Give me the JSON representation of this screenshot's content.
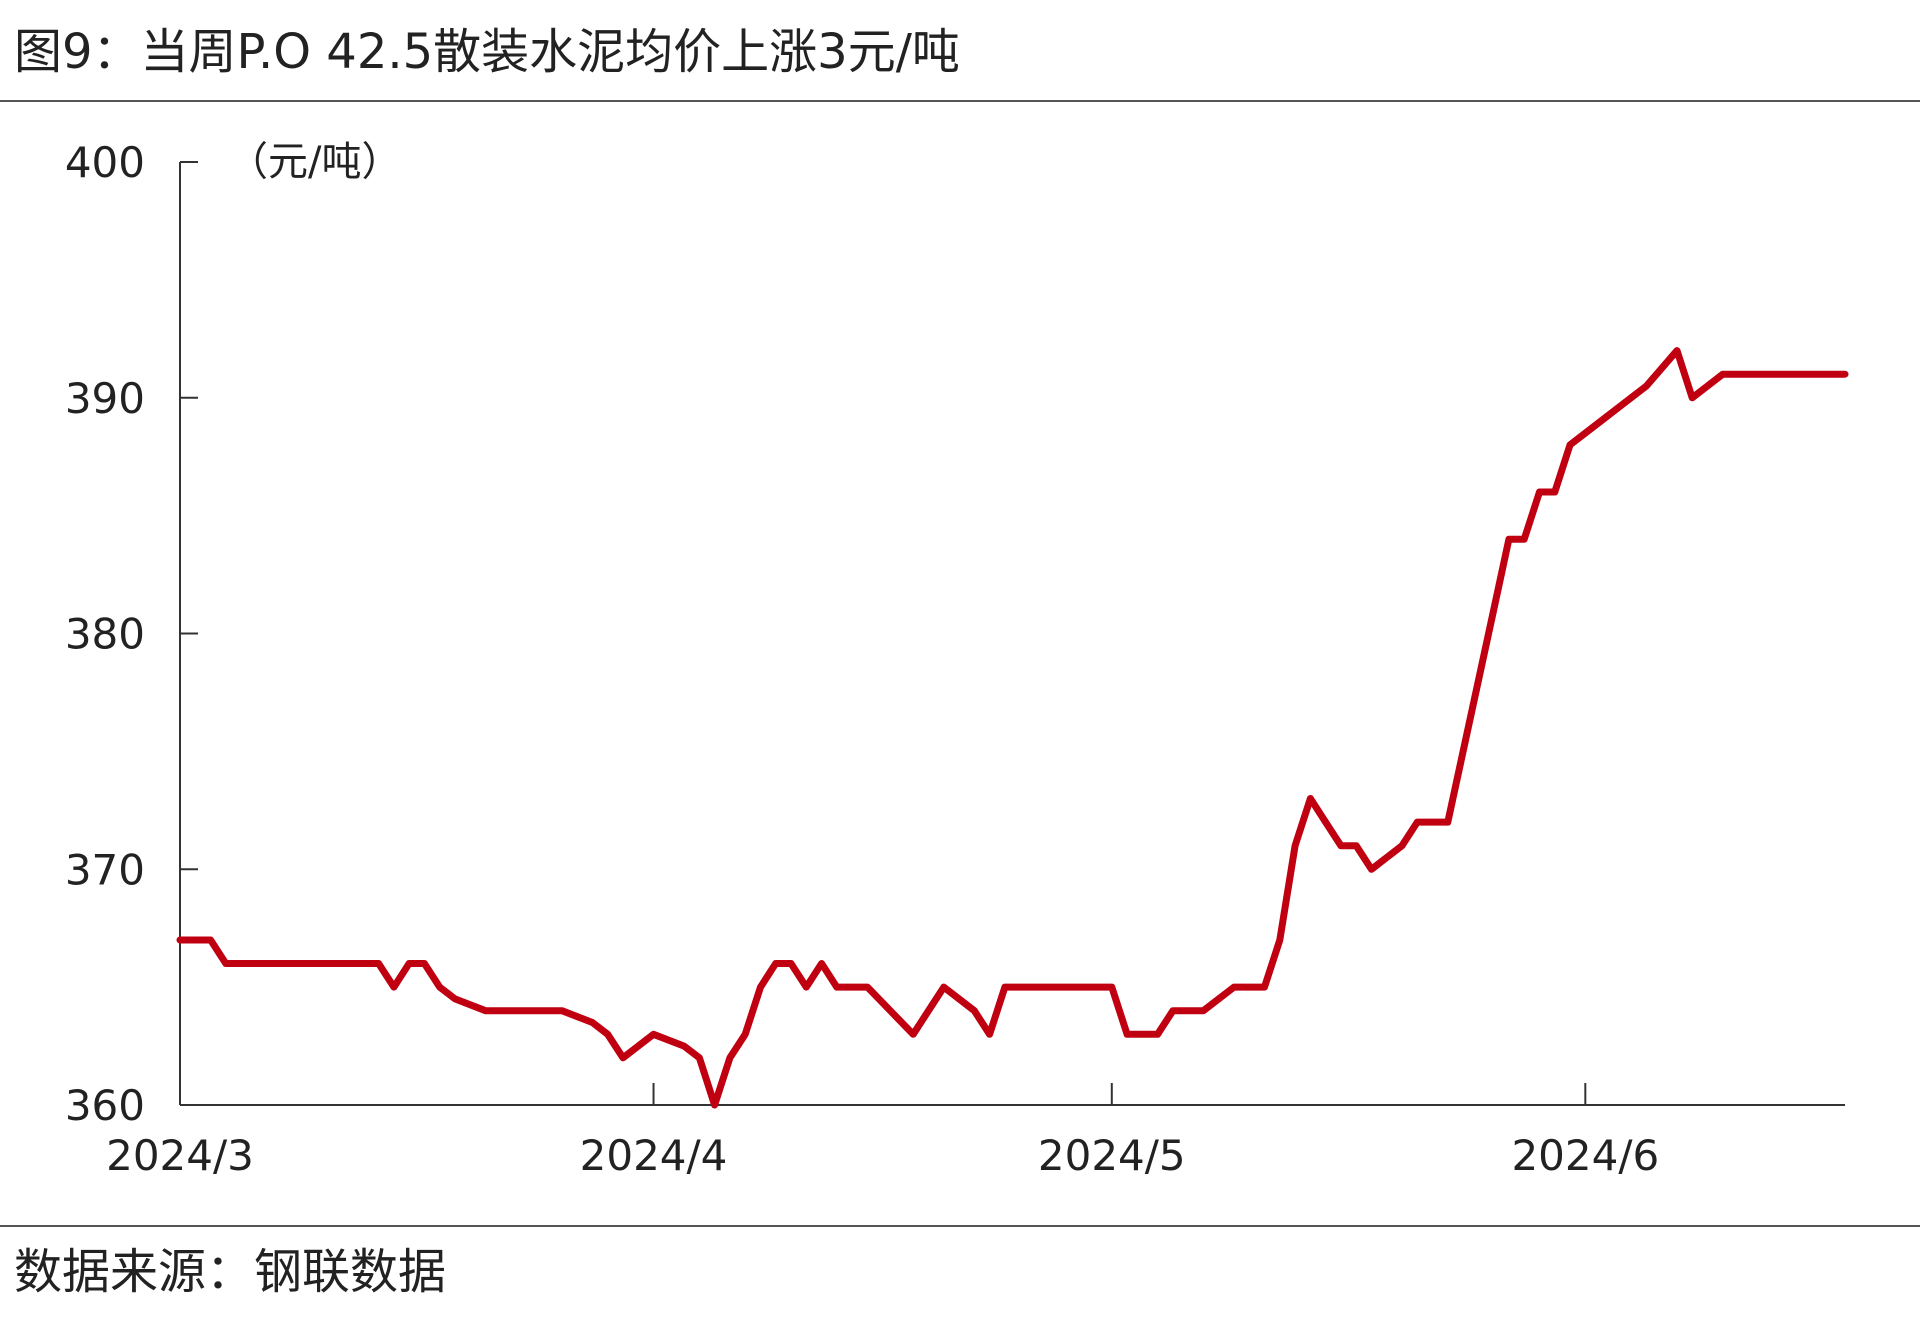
{
  "title": "图9：当周P.O 42.5散装水泥均价上涨3元/吨",
  "source": "数据来源：钢联数据",
  "chart_data": {
    "type": "line",
    "unit_label": "（元/吨）",
    "ylim": [
      360,
      400
    ],
    "yticks": [
      "360",
      "370",
      "380",
      "390",
      "400"
    ],
    "xlim": [
      "2024-03-01",
      "2024-06-18"
    ],
    "xticks": [
      {
        "date": "2024-03-01",
        "label": "2024/3"
      },
      {
        "date": "2024-04-01",
        "label": "2024/4"
      },
      {
        "date": "2024-05-01",
        "label": "2024/5"
      },
      {
        "date": "2024-06-01",
        "label": "2024/6"
      }
    ],
    "grid": false,
    "legend": "none",
    "line_color": "#c00010",
    "series": [
      {
        "x": [
          "2024-03-01",
          "2024-03-03",
          "2024-03-04",
          "2024-03-05",
          "2024-03-08",
          "2024-03-14",
          "2024-03-15",
          "2024-03-16",
          "2024-03-17",
          "2024-03-18",
          "2024-03-19",
          "2024-03-21",
          "2024-03-22",
          "2024-03-26",
          "2024-03-28",
          "2024-03-29",
          "2024-03-30",
          "2024-04-01",
          "2024-04-03",
          "2024-04-04",
          "2024-04-05",
          "2024-04-06",
          "2024-04-07",
          "2024-04-08",
          "2024-04-09",
          "2024-04-10",
          "2024-04-11",
          "2024-04-12",
          "2024-04-13",
          "2024-04-14",
          "2024-04-15",
          "2024-04-18",
          "2024-04-19",
          "2024-04-20",
          "2024-04-22",
          "2024-04-23",
          "2024-04-24",
          "2024-04-26",
          "2024-04-27",
          "2024-04-28",
          "2024-04-30",
          "2024-05-01",
          "2024-05-02",
          "2024-05-04",
          "2024-05-05",
          "2024-05-07",
          "2024-05-09",
          "2024-05-10",
          "2024-05-11",
          "2024-05-12",
          "2024-05-13",
          "2024-05-14",
          "2024-05-15",
          "2024-05-16",
          "2024-05-17",
          "2024-05-18",
          "2024-05-19",
          "2024-05-20",
          "2024-05-21",
          "2024-05-22",
          "2024-05-23",
          "2024-05-24",
          "2024-05-25",
          "2024-05-26",
          "2024-05-27",
          "2024-05-28",
          "2024-05-29",
          "2024-05-30",
          "2024-05-31",
          "2024-06-02",
          "2024-06-03",
          "2024-06-05",
          "2024-06-07",
          "2024-06-08",
          "2024-06-09",
          "2024-06-10",
          "2024-06-11",
          "2024-06-12",
          "2024-06-13",
          "2024-06-14",
          "2024-06-15",
          "2024-06-16",
          "2024-06-17",
          "2024-06-18"
        ],
        "y": [
          367,
          367,
          366,
          366,
          366,
          366,
          365,
          366,
          366,
          365,
          364.5,
          364,
          364,
          364,
          363.5,
          363,
          362,
          363,
          362.5,
          362,
          360,
          362,
          363,
          365,
          366,
          366,
          365,
          366,
          365,
          365,
          365,
          363,
          364,
          365,
          364,
          363,
          365,
          365,
          365,
          365,
          365,
          365,
          363,
          363,
          364,
          364,
          365,
          365,
          365,
          367,
          371,
          373,
          372,
          371,
          371,
          370,
          370.5,
          371,
          372,
          372,
          372,
          375,
          378,
          381,
          384,
          384,
          386,
          386,
          388,
          389,
          389.5,
          390.5,
          392,
          390,
          390.5,
          391,
          391,
          391,
          391,
          391,
          391,
          391,
          391,
          391
        ]
      }
    ]
  }
}
